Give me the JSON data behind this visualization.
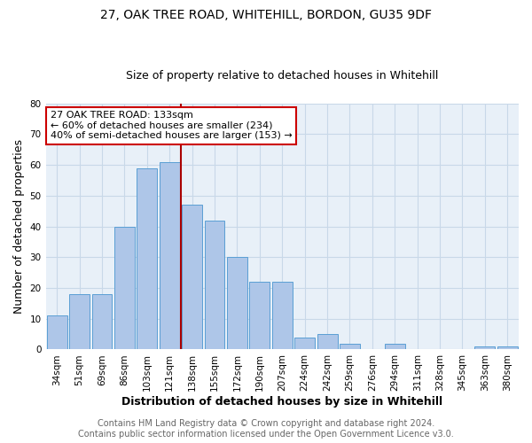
{
  "title1": "27, OAK TREE ROAD, WHITEHILL, BORDON, GU35 9DF",
  "title2": "Size of property relative to detached houses in Whitehill",
  "xlabel": "Distribution of detached houses by size in Whitehill",
  "ylabel": "Number of detached properties",
  "footer1": "Contains HM Land Registry data © Crown copyright and database right 2024.",
  "footer2": "Contains public sector information licensed under the Open Government Licence v3.0.",
  "annotation_line1": "27 OAK TREE ROAD: 133sqm",
  "annotation_line2": "← 60% of detached houses are smaller (234)",
  "annotation_line3": "40% of semi-detached houses are larger (153) →",
  "bar_labels": [
    "34sqm",
    "51sqm",
    "69sqm",
    "86sqm",
    "103sqm",
    "121sqm",
    "138sqm",
    "155sqm",
    "172sqm",
    "190sqm",
    "207sqm",
    "224sqm",
    "242sqm",
    "259sqm",
    "276sqm",
    "294sqm",
    "311sqm",
    "328sqm",
    "345sqm",
    "363sqm",
    "380sqm"
  ],
  "bar_values": [
    11,
    18,
    18,
    40,
    59,
    61,
    47,
    42,
    30,
    22,
    22,
    4,
    5,
    2,
    0,
    2,
    0,
    0,
    0,
    1,
    1
  ],
  "bar_color": "#aec6e8",
  "bar_edge_color": "#5a9fd4",
  "marker_line_color": "#aa0000",
  "ylim": [
    0,
    80
  ],
  "yticks": [
    0,
    10,
    20,
    30,
    40,
    50,
    60,
    70,
    80
  ],
  "background_color": "#ffffff",
  "grid_color": "#c8d8e8",
  "annotation_box_color": "#ffffff",
  "annotation_box_edge": "#cc0000",
  "title_fontsize": 10,
  "subtitle_fontsize": 9,
  "axis_label_fontsize": 9,
  "tick_fontsize": 7.5,
  "annotation_fontsize": 8,
  "footer_fontsize": 7
}
